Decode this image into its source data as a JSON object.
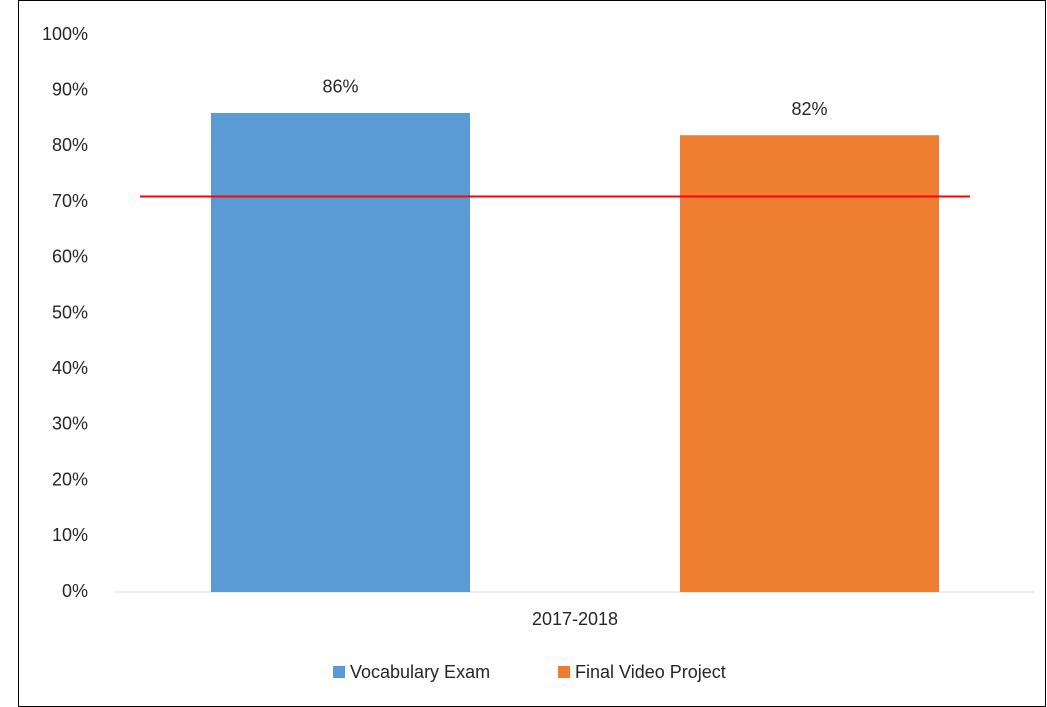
{
  "chart_data": {
    "type": "bar",
    "categories": [
      "2017-2018"
    ],
    "series": [
      {
        "name": "Vocabulary Exam",
        "color": "#5b9bd5",
        "values": [
          86
        ],
        "value_labels": [
          "86%"
        ]
      },
      {
        "name": "Final Video Project",
        "color": "#ed7d31",
        "values": [
          82
        ],
        "value_labels": [
          "82%"
        ]
      }
    ],
    "ylim": [
      0,
      100
    ],
    "yticks": [
      {
        "value": 0,
        "label": "0%"
      },
      {
        "value": 10,
        "label": "10%"
      },
      {
        "value": 20,
        "label": "20%"
      },
      {
        "value": 30,
        "label": "30%"
      },
      {
        "value": 40,
        "label": "40%"
      },
      {
        "value": 50,
        "label": "50%"
      },
      {
        "value": 60,
        "label": "60%"
      },
      {
        "value": 70,
        "label": "70%"
      },
      {
        "value": 80,
        "label": "80%"
      },
      {
        "value": 90,
        "label": "90%"
      },
      {
        "value": 100,
        "label": "100%"
      }
    ],
    "grid": false,
    "reference_line": {
      "value": 71,
      "color": "#ff0000"
    },
    "legend": "bottom"
  }
}
